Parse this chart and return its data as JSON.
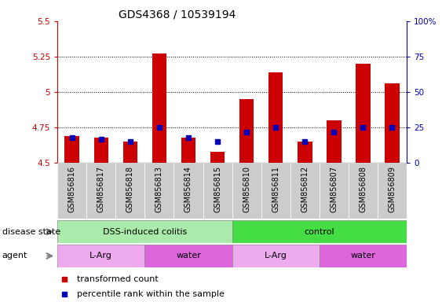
{
  "title": "GDS4368 / 10539194",
  "samples": [
    "GSM856816",
    "GSM856817",
    "GSM856818",
    "GSM856813",
    "GSM856814",
    "GSM856815",
    "GSM856810",
    "GSM856811",
    "GSM856812",
    "GSM856807",
    "GSM856808",
    "GSM856809"
  ],
  "red_values": [
    4.69,
    4.68,
    4.65,
    5.27,
    4.68,
    4.58,
    4.95,
    5.14,
    4.65,
    4.8,
    5.2,
    5.06
  ],
  "blue_values": [
    18,
    17,
    15,
    25,
    18,
    15,
    22,
    25,
    15,
    22,
    25,
    25
  ],
  "ylim_left": [
    4.5,
    5.5
  ],
  "ylim_right": [
    0,
    100
  ],
  "yticks_left": [
    4.5,
    4.75,
    5.0,
    5.25,
    5.5
  ],
  "yticks_right": [
    0,
    25,
    50,
    75,
    100
  ],
  "ytick_labels_left": [
    "4.5",
    "4.75",
    "5",
    "5.25",
    "5.5"
  ],
  "ytick_labels_right": [
    "0",
    "25",
    "50",
    "75",
    "100%"
  ],
  "grid_lines": [
    4.75,
    5.0,
    5.25
  ],
  "bar_bottom": 4.5,
  "bar_width": 0.5,
  "blue_marker_size": 5,
  "disease_state_groups": [
    {
      "label": "DSS-induced colitis",
      "start": 0,
      "end": 6,
      "color": "#AAEAAA"
    },
    {
      "label": "control",
      "start": 6,
      "end": 12,
      "color": "#44DD44"
    }
  ],
  "agent_groups": [
    {
      "label": "L-Arg",
      "start": 0,
      "end": 3,
      "color": "#EEAAEE"
    },
    {
      "label": "water",
      "start": 3,
      "end": 6,
      "color": "#DD66DD"
    },
    {
      "label": "L-Arg",
      "start": 6,
      "end": 9,
      "color": "#EEAAEE"
    },
    {
      "label": "water",
      "start": 9,
      "end": 12,
      "color": "#DD66DD"
    }
  ],
  "legend_items": [
    {
      "label": "transformed count",
      "color": "#CC0000"
    },
    {
      "label": "percentile rank within the sample",
      "color": "#0000CC"
    }
  ],
  "red_color": "#CC0000",
  "blue_color": "#0000BB",
  "left_axis_color": "#CC0000",
  "right_axis_color": "#0000BB",
  "title_fontsize": 10,
  "tick_fontsize": 7.5,
  "label_fontsize": 8,
  "xtick_fontsize": 7,
  "sample_bg_color": "#CCCCCC",
  "sample_border_color": "#888888"
}
